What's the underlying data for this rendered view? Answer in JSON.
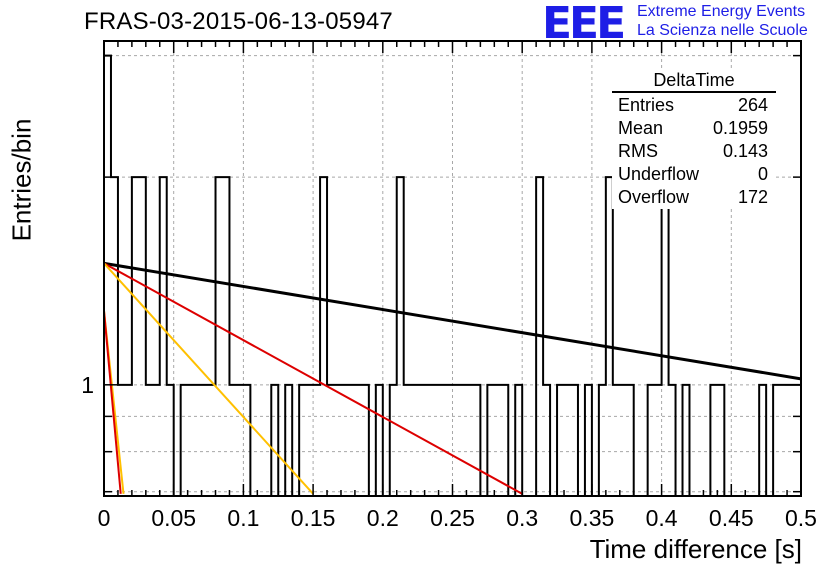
{
  "header": {
    "run_title": "FRAS-03-2015-06-13-05947",
    "logo_text": "EEE",
    "logo_line1": "Extreme Energy Events",
    "logo_line2": "La Scienza nelle Scuole"
  },
  "stats_box": {
    "title": "DeltaTime",
    "rows": [
      {
        "label": "Entries",
        "value": "264"
      },
      {
        "label": "Mean",
        "value": "0.1959"
      },
      {
        "label": "RMS",
        "value": "0.143"
      },
      {
        "label": "Underflow",
        "value": "0"
      },
      {
        "label": "Overflow",
        "value": "172"
      }
    ]
  },
  "colors": {
    "histogram": "#000000",
    "fit_black": "#000000",
    "fit_red": "#dd0000",
    "fit_orange": "#ffc000",
    "grid": "#a8a8a8",
    "logo": "#1e1ee6"
  },
  "chart_data": {
    "type": "histogram",
    "title": "FRAS-03-2015-06-13-05947",
    "xlabel": "Time difference [s]",
    "ylabel": "Entries/bin",
    "xlim": [
      0,
      0.5
    ],
    "ylim": [
      0.69,
      3.15
    ],
    "y_scale": "log",
    "grid": true,
    "bin_width": 0.005,
    "x_ticks": [
      "0",
      "0.05",
      "0.1",
      "0.15",
      "0.2",
      "0.25",
      "0.3",
      "0.35",
      "0.4",
      "0.45",
      "0.5"
    ],
    "y_ticks": [
      "1"
    ],
    "bin_counts": [
      3,
      2,
      1,
      1,
      2,
      2,
      1,
      1,
      2,
      1,
      0,
      1,
      1,
      1,
      1,
      1,
      2,
      2,
      1,
      1,
      1,
      0,
      0,
      0,
      1,
      0,
      1,
      0,
      1,
      1,
      1,
      2,
      1,
      1,
      1,
      1,
      1,
      1,
      0,
      1,
      0,
      1,
      2,
      1,
      1,
      1,
      1,
      1,
      1,
      1,
      1,
      1,
      1,
      1,
      0,
      1,
      1,
      1,
      0,
      1,
      0,
      0,
      2,
      1,
      0,
      1,
      1,
      1,
      0,
      1,
      0,
      1,
      2,
      1,
      1,
      1,
      0,
      0,
      1,
      1,
      2,
      1,
      0,
      1,
      0,
      0,
      0,
      1,
      1,
      0,
      0,
      0,
      0,
      0,
      1,
      0,
      1,
      1,
      1,
      1
    ],
    "fits": [
      {
        "color": "black",
        "points": [
          [
            0.0,
            1.5
          ],
          [
            0.5,
            1.02
          ]
        ]
      },
      {
        "color": "red",
        "points": [
          [
            0.0,
            1.5
          ],
          [
            0.3,
            0.695
          ]
        ]
      },
      {
        "color": "orange",
        "points": [
          [
            0.0,
            1.5
          ],
          [
            0.15,
            0.695
          ]
        ]
      },
      {
        "color": "orange",
        "points": [
          [
            0.0,
            1.28
          ],
          [
            0.014,
            0.695
          ]
        ]
      },
      {
        "color": "red",
        "points": [
          [
            0.0,
            1.28
          ],
          [
            0.012,
            0.695
          ]
        ]
      }
    ],
    "stats": {
      "name": "DeltaTime",
      "entries": 264,
      "mean": 0.1959,
      "rms": 0.143,
      "underflow": 0,
      "overflow": 172
    }
  }
}
